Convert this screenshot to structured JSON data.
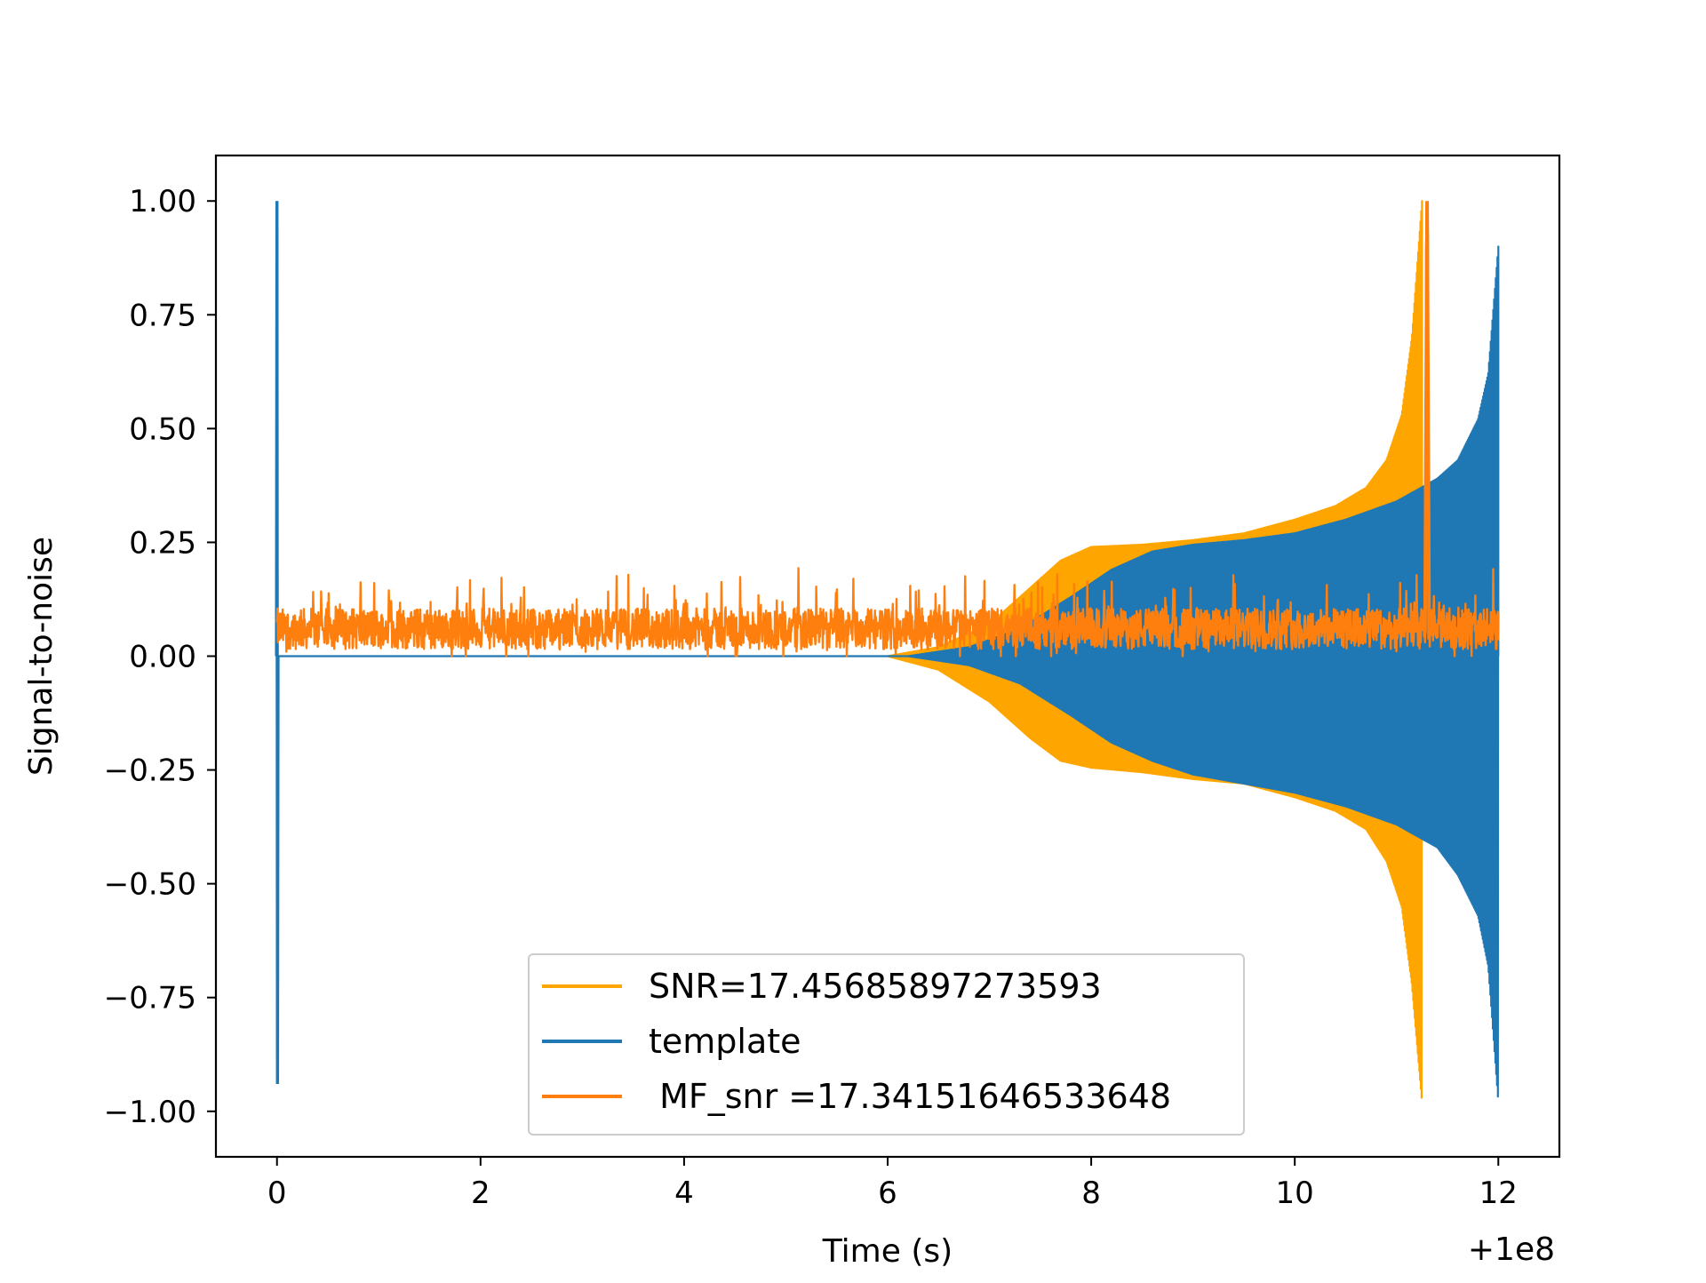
{
  "chart_data": {
    "type": "line",
    "title": "",
    "xlabel": "Time (s)",
    "ylabel": "Signal-to-noise",
    "x_offset_label": "+1e8",
    "xlim": [
      -0.6,
      12.6
    ],
    "ylim": [
      -1.1,
      1.1
    ],
    "xticks": [
      0,
      2,
      4,
      6,
      8,
      10,
      12
    ],
    "xtick_labels": [
      "0",
      "2",
      "4",
      "6",
      "8",
      "10",
      "12"
    ],
    "yticks": [
      1.0,
      0.75,
      0.5,
      0.25,
      0.0,
      -0.25,
      -0.5,
      -0.75,
      -1.0
    ],
    "ytick_labels": [
      "1.00",
      "0.75",
      "0.50",
      "0.25",
      "0.00",
      "−0.25",
      "−0.50",
      "−0.75",
      "−1.00"
    ],
    "grid": false,
    "legend_position": "lower center",
    "series": [
      {
        "name": "SNR=17.45685897273593",
        "color": "#ffa500",
        "kind": "chirp-envelope",
        "x": [
          6.0,
          6.5,
          7.0,
          7.4,
          7.7,
          8.0,
          8.5,
          9.0,
          9.5,
          10.0,
          10.4,
          10.7,
          10.9,
          11.05,
          11.15,
          11.25
        ],
        "upper": [
          0.0,
          0.02,
          0.07,
          0.15,
          0.21,
          0.24,
          0.245,
          0.255,
          0.27,
          0.3,
          0.33,
          0.37,
          0.43,
          0.53,
          0.7,
          1.0
        ],
        "lower": [
          0.0,
          -0.03,
          -0.1,
          -0.18,
          -0.23,
          -0.245,
          -0.255,
          -0.27,
          -0.28,
          -0.31,
          -0.34,
          -0.38,
          -0.45,
          -0.55,
          -0.72,
          -0.98
        ]
      },
      {
        "name": "template",
        "color": "#1f77b4",
        "kind": "chirp-envelope",
        "x": [
          6.2,
          6.8,
          7.3,
          7.8,
          8.2,
          8.6,
          9.0,
          9.5,
          10.0,
          10.5,
          11.0,
          11.4,
          11.6,
          11.8,
          11.9,
          12.0
        ],
        "upper": [
          0.0,
          0.02,
          0.06,
          0.13,
          0.19,
          0.23,
          0.245,
          0.255,
          0.27,
          0.3,
          0.34,
          0.39,
          0.43,
          0.52,
          0.62,
          0.9
        ],
        "lower": [
          0.0,
          -0.02,
          -0.06,
          -0.13,
          -0.19,
          -0.23,
          -0.26,
          -0.28,
          -0.3,
          -0.33,
          -0.37,
          -0.42,
          -0.48,
          -0.57,
          -0.68,
          -0.98
        ],
        "start_spike": {
          "x": 0.0,
          "max": 1.0,
          "min": -0.94
        }
      },
      {
        "name": " MF_snr =17.34151646533648",
        "color": "#ff7f0e",
        "kind": "noise",
        "x_range": [
          0.0,
          12.0
        ],
        "baseline": 0.06,
        "spread": 0.09,
        "peak": {
          "x": 11.3,
          "value": 1.0
        }
      }
    ]
  }
}
